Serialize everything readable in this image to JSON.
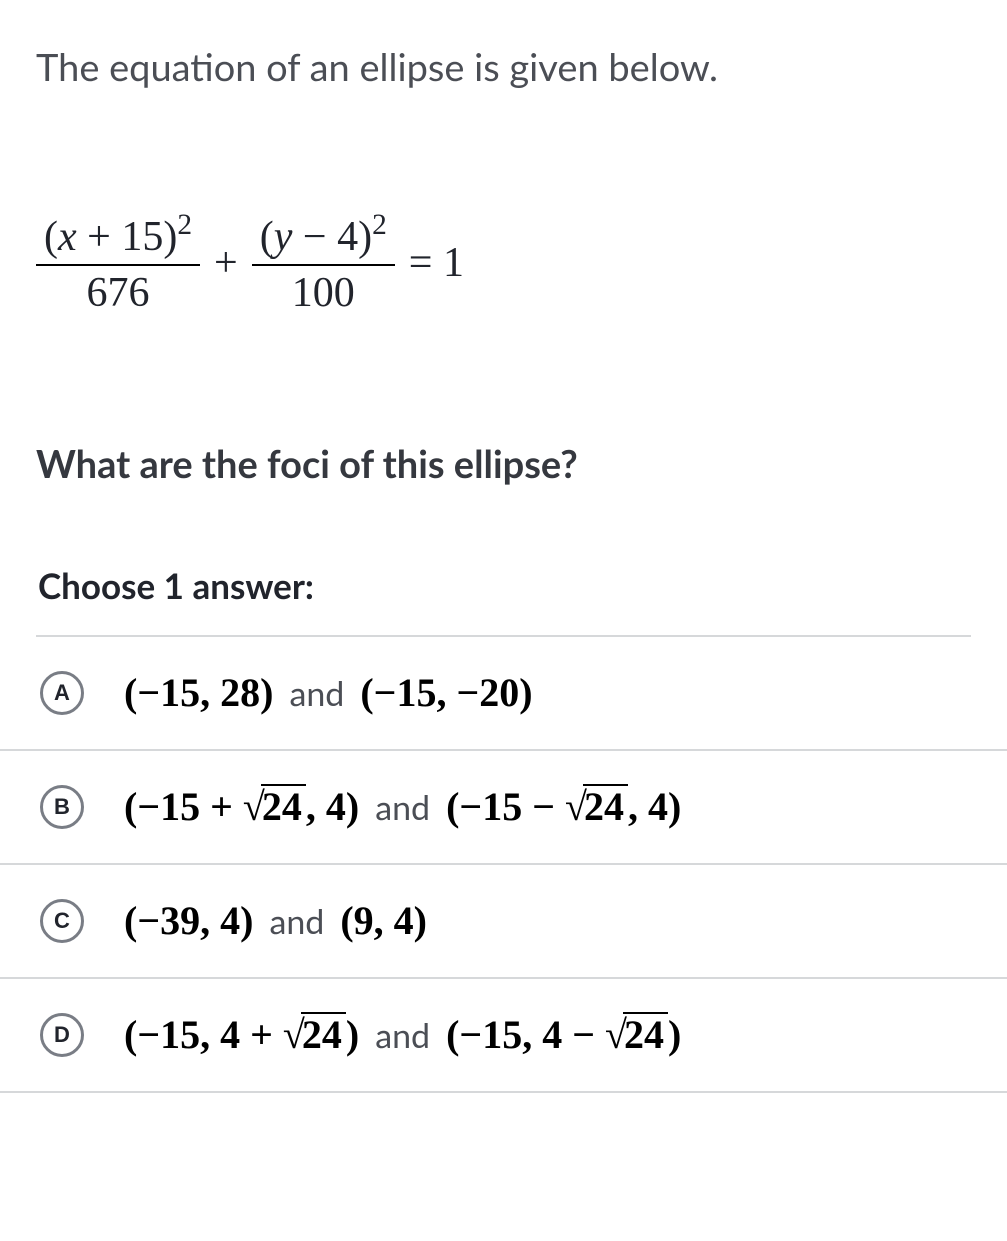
{
  "intro_text": "The equation of an ellipse is given below.",
  "equation": {
    "frac1_num_open": "(",
    "frac1_num_var": "x",
    "frac1_num_rest": " + 15)",
    "frac1_num_exp": "2",
    "frac1_den": "676",
    "plus": "+",
    "frac2_num_open": "(",
    "frac2_num_var": "y",
    "frac2_num_rest": " − 4)",
    "frac2_num_exp": "2",
    "frac2_den": "100",
    "equals_rhs": "= 1"
  },
  "question_text": "What are the foci of this ellipse?",
  "choose_text": "Choose 1 answer:",
  "and_word": "and",
  "choices": {
    "A": {
      "letter": "A",
      "part1": "(−15, 28)",
      "part2": "(−15, −20)"
    },
    "B": {
      "letter": "B",
      "p1_pre": "(−15 + ",
      "p1_sqrt": "24",
      "p1_post": ", 4)",
      "p2_pre": "(−15 − ",
      "p2_sqrt": "24",
      "p2_post": ", 4)"
    },
    "C": {
      "letter": "C",
      "part1": "(−39, 4)",
      "part2": "(9, 4)"
    },
    "D": {
      "letter": "D",
      "p1_pre": "(−15, 4 + ",
      "p1_sqrt": "24",
      "p1_post": ")",
      "p2_pre": "(−15, 4 − ",
      "p2_sqrt": "24",
      "p2_post": ")"
    }
  },
  "styling": {
    "text_color": "#4b4e55",
    "heading_color": "#21242c",
    "border_color": "#d6d8da",
    "bubble_border": "#797d85",
    "background": "#ffffff",
    "intro_fontsize": 38,
    "question_fontsize": 38,
    "choose_fontsize": 35,
    "math_fontsize": 42,
    "choice_math_fontsize": 40,
    "and_fontsize": 34,
    "bubble_diameter": 44,
    "bubble_fontsize": 22
  }
}
